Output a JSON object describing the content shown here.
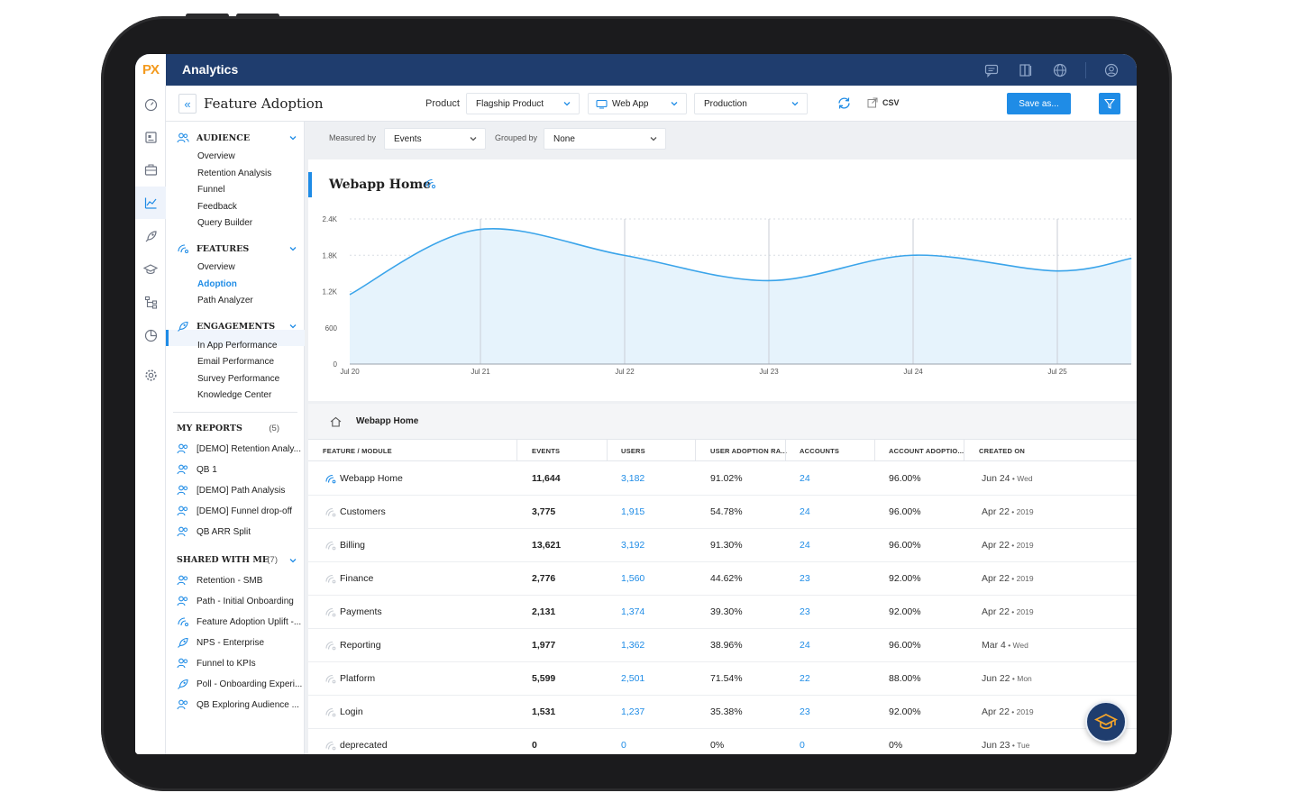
{
  "app": {
    "logo": "PX",
    "title": "Analytics"
  },
  "top_icons": [
    "chat-icon",
    "book-icon",
    "globe-icon",
    "user-circle-icon"
  ],
  "rail_icons": [
    "speedometer-icon",
    "dashboard-icon",
    "briefcase-icon",
    "analytics-chart-icon",
    "rocket-icon",
    "graduation-cap-icon",
    "flow-icon",
    "pie-chart-icon",
    "settings-icon"
  ],
  "header": {
    "collapse": "«",
    "title": "Feature Adoption",
    "product_label": "Product",
    "product_value": "Flagship Product",
    "app_value": "Web App",
    "env_value": "Production",
    "csv_label": "CSV",
    "save_label": "Save as..."
  },
  "measure": {
    "measured_by_label": "Measured by",
    "measured_by_value": "Events",
    "grouped_by_label": "Grouped by",
    "grouped_by_value": "None"
  },
  "sidebar": {
    "audience": {
      "title": "AUDIENCE",
      "items": [
        "Overview",
        "Retention Analysis",
        "Funnel",
        "Feedback",
        "Query Builder"
      ]
    },
    "features": {
      "title": "FEATURES",
      "items": [
        "Overview",
        "Adoption",
        "Path Analyzer"
      ],
      "active": "Adoption"
    },
    "engagements": {
      "title": "ENGAGEMENTS",
      "items": [
        "In App Performance",
        "Email Performance",
        "Survey Performance",
        "Knowledge Center"
      ]
    },
    "my_reports": {
      "title": "MY REPORTS",
      "count": "(5)",
      "items": [
        "[DEMO] Retention Analy...",
        "QB 1",
        "[DEMO] Path Analysis",
        "[DEMO] Funnel drop-off",
        "QB ARR Split"
      ]
    },
    "shared": {
      "title": "SHARED WITH ME",
      "count": "(7)",
      "items": [
        "Retention - SMB",
        "Path - Initial Onboarding",
        "Feature Adoption Uplift -...",
        "NPS - Enterprise",
        "Funnel to KPIs",
        "Poll - Onboarding Experi...",
        "QB Exploring Audience ..."
      ]
    }
  },
  "chart_data": {
    "type": "area",
    "title": "Webapp Home",
    "x": [
      "Jul 20",
      "Jul 21",
      "Jul 22",
      "Jul 23",
      "Jul 24",
      "Jul 25"
    ],
    "y_ticks": [
      "0",
      "600",
      "1.2K",
      "1.8K",
      "2.4K"
    ],
    "ylim": [
      0,
      2400
    ],
    "series": [
      {
        "points": [
          [
            0,
            1150
          ],
          [
            0.88,
            2220
          ],
          [
            1.9,
            1800
          ],
          [
            2.9,
            1380
          ],
          [
            3.9,
            1800
          ],
          [
            4.9,
            1540
          ],
          [
            5.42,
            1750
          ]
        ]
      }
    ],
    "fill_color": "#e6f3fc",
    "line_color": "#3aa4ea",
    "grid": true
  },
  "table": {
    "title": "Webapp Home",
    "columns": [
      "FEATURE / MODULE",
      "EVENTS",
      "USERS",
      "USER ADOPTION RA...",
      "ACCOUNTS",
      "ACCOUNT ADOPTIO...",
      "CREATED ON"
    ],
    "rows": [
      {
        "feature": "Webapp Home",
        "events": "11,644",
        "users": "3,182",
        "user_rate": "91.02%",
        "accounts": "24",
        "account_rate": "96.00%",
        "created": "Jun 24",
        "created_sub": "Wed",
        "highlight": true
      },
      {
        "feature": "Customers",
        "events": "3,775",
        "users": "1,915",
        "user_rate": "54.78%",
        "accounts": "24",
        "account_rate": "96.00%",
        "created": "Apr 22",
        "created_sub": "2019"
      },
      {
        "feature": "Billing",
        "events": "13,621",
        "users": "3,192",
        "user_rate": "91.30%",
        "accounts": "24",
        "account_rate": "96.00%",
        "created": "Apr 22",
        "created_sub": "2019"
      },
      {
        "feature": "Finance",
        "events": "2,776",
        "users": "1,560",
        "user_rate": "44.62%",
        "accounts": "23",
        "account_rate": "92.00%",
        "created": "Apr 22",
        "created_sub": "2019"
      },
      {
        "feature": "Payments",
        "events": "2,131",
        "users": "1,374",
        "user_rate": "39.30%",
        "accounts": "23",
        "account_rate": "92.00%",
        "created": "Apr 22",
        "created_sub": "2019"
      },
      {
        "feature": "Reporting",
        "events": "1,977",
        "users": "1,362",
        "user_rate": "38.96%",
        "accounts": "24",
        "account_rate": "96.00%",
        "created": "Mar 4",
        "created_sub": "Wed"
      },
      {
        "feature": "Platform",
        "events": "5,599",
        "users": "2,501",
        "user_rate": "71.54%",
        "accounts": "22",
        "account_rate": "88.00%",
        "created": "Jun 22",
        "created_sub": "Mon"
      },
      {
        "feature": "Login",
        "events": "1,531",
        "users": "1,237",
        "user_rate": "35.38%",
        "accounts": "23",
        "account_rate": "92.00%",
        "created": "Apr 22",
        "created_sub": "2019"
      },
      {
        "feature": "deprecated",
        "events": "0",
        "users": "0",
        "user_rate": "0%",
        "accounts": "0",
        "account_rate": "0%",
        "created": "Jun 23",
        "created_sub": "Tue"
      }
    ]
  },
  "colors": {
    "nav": "#1f3d6e",
    "accent": "#1f8ce6",
    "logo": "#f39a1e"
  }
}
